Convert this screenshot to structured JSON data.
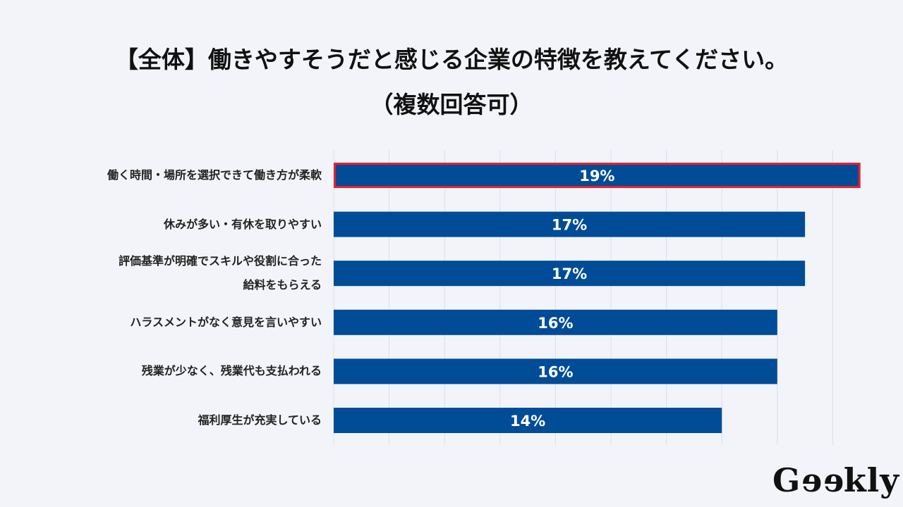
{
  "title_line1": "【全体】働きやすそうだと感じる企業の特徴を教えてください。",
  "title_line2": "（複数回答可）",
  "logo": "Geekly",
  "colors": {
    "bar": "#004c97",
    "highlight": "#e8202a",
    "grid": "#dcdfe6",
    "background": "#f2f4f9"
  },
  "chart_data": {
    "type": "bar",
    "orientation": "horizontal",
    "categories": [
      "働く時間・場所を選択できて働き方が柔軟",
      "休みが多い・有休を取りやすい",
      "評価基準が明確でスキルや役割に合った\n給料をもらえる",
      "ハラスメントがなく意見を言いやすい",
      "残業が少なく、残業代も支払われる",
      "福利厚生が充実している"
    ],
    "values": [
      19,
      17,
      17,
      16,
      16,
      14
    ],
    "data_labels": [
      "19%",
      "17%",
      "17%",
      "16%",
      "16%",
      "14%"
    ],
    "highlighted": [
      0
    ],
    "xlim": [
      0,
      19
    ],
    "grid": true,
    "grid_step": 2,
    "unit": "%"
  }
}
